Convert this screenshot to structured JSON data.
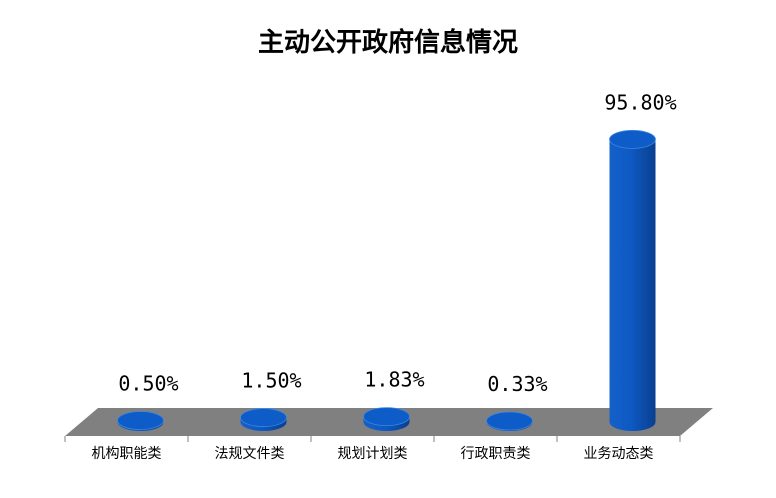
{
  "chart_data": {
    "type": "bar",
    "title": "主动公开政府信息情况",
    "categories": [
      "机构职能类",
      "法规文件类",
      "规划计划类",
      "行政职责类",
      "业务动态类"
    ],
    "values": [
      0.5,
      1.5,
      1.83,
      0.33,
      95.8
    ],
    "value_labels": [
      "0.50%",
      "1.50%",
      "1.83%",
      "0.33%",
      "95.80%"
    ],
    "unit": "%",
    "ylim": [
      0,
      100
    ],
    "grid": false,
    "legend": "none",
    "style": "3d-cylinder",
    "colors": {
      "bar": "#0d5cc7",
      "bar_dark": "#0a3f8f",
      "bar_light": "#3f86e0",
      "floor": "#808080"
    }
  }
}
